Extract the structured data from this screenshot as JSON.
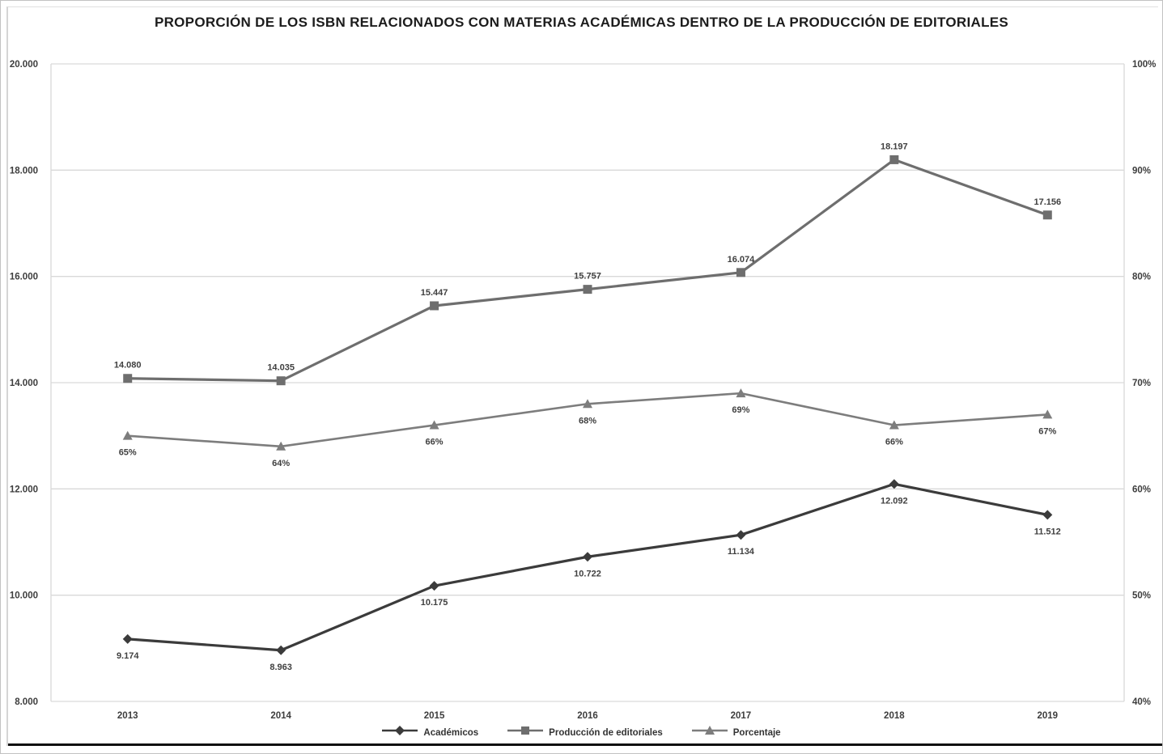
{
  "title": "PROPORCIÓN DE LOS ISBN RELACIONADOS CON MATERIAS ACADÉMICAS DENTRO DE LA PRODUCCIÓN DE EDITORIALES",
  "chart_data": {
    "type": "line",
    "categories": [
      "2013",
      "2014",
      "2015",
      "2016",
      "2017",
      "2018",
      "2019"
    ],
    "series": [
      {
        "name": "Académicos",
        "axis": "left",
        "marker": "diamond",
        "color": "#3b3b3b",
        "values": [
          9174,
          8963,
          10175,
          10722,
          11134,
          12092,
          11512
        ],
        "labels": [
          "9.174",
          "8.963",
          "10.175",
          "10.722",
          "11.134",
          "12.092",
          "11.512"
        ],
        "label_position": "below"
      },
      {
        "name": "Producción de editoriales",
        "axis": "left",
        "marker": "square",
        "color": "#6e6e6e",
        "values": [
          14080,
          14035,
          15447,
          15757,
          16074,
          18197,
          17156
        ],
        "labels": [
          "14.080",
          "14.035",
          "15.447",
          "15.757",
          "16.074",
          "18.197",
          "17.156"
        ],
        "label_position": "above"
      },
      {
        "name": "Porcentaje",
        "axis": "right",
        "marker": "triangle",
        "color": "#7d7d7d",
        "values": [
          65,
          64,
          66,
          68,
          69,
          66,
          67
        ],
        "labels": [
          "65%",
          "64%",
          "66%",
          "68%",
          "69%",
          "66%",
          "67%"
        ],
        "label_position": "below"
      }
    ],
    "left_axis": {
      "min": 8000,
      "max": 20000,
      "step": 2000,
      "tick_labels": [
        "8.000",
        "10.000",
        "12.000",
        "14.000",
        "16.000",
        "18.000",
        "20.000"
      ]
    },
    "right_axis": {
      "min": 40,
      "max": 100,
      "step": 10,
      "tick_labels": [
        "40%",
        "50%",
        "60%",
        "70%",
        "80%",
        "90%",
        "100%"
      ]
    },
    "grid": "horizontal",
    "gridline_color": "#d9d9d9",
    "label_color": "#404040",
    "legend_position": "bottom"
  }
}
